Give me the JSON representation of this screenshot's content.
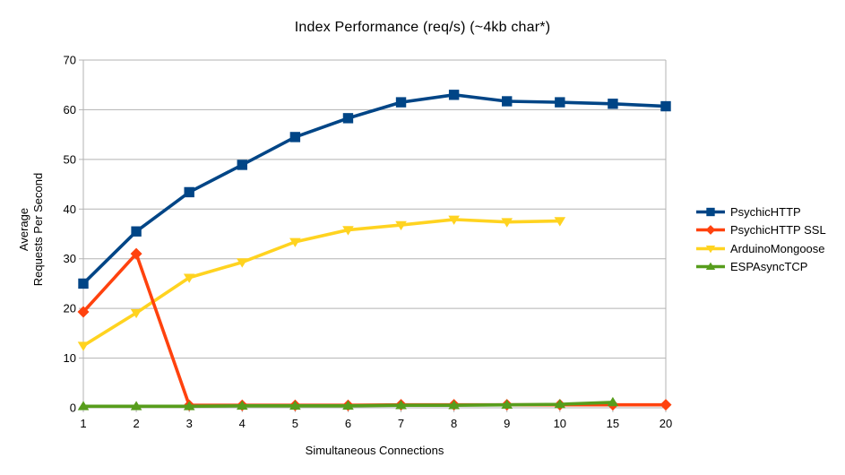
{
  "chart_data": {
    "type": "line",
    "title": "Index Performance (req/s) (~4kb char*)",
    "xlabel": "Simultaneous Connections",
    "ylabel_lines": [
      "Average",
      "Requests Per Second"
    ],
    "categories": [
      "1",
      "2",
      "3",
      "4",
      "5",
      "6",
      "7",
      "8",
      "9",
      "10",
      "15",
      "20"
    ],
    "ylim": [
      0,
      70
    ],
    "yticks": [
      0,
      10,
      20,
      30,
      40,
      50,
      60,
      70
    ],
    "grid": "horizontal",
    "legend_position": "right",
    "series": [
      {
        "name": "PsychicHTTP",
        "color": "#004586",
        "marker": "square",
        "values": [
          25.0,
          35.5,
          43.4,
          48.9,
          54.5,
          58.3,
          61.5,
          63.0,
          61.7,
          61.5,
          61.2,
          60.7
        ]
      },
      {
        "name": "PsychicHTTP SSL",
        "color": "#FF420E",
        "marker": "diamond",
        "values": [
          19.3,
          31.0,
          0.5,
          0.5,
          0.5,
          0.5,
          0.6,
          0.6,
          0.6,
          0.6,
          0.6,
          0.6
        ]
      },
      {
        "name": "ArduinoMongoose",
        "color": "#FFD320",
        "marker": "triangle-down",
        "values": [
          12.5,
          19.1,
          26.2,
          29.3,
          33.4,
          35.8,
          36.8,
          37.9,
          37.4,
          37.6,
          null,
          null
        ]
      },
      {
        "name": "ESPAsyncTCP",
        "color": "#579D1C",
        "marker": "triangle-up",
        "values": [
          0.3,
          0.3,
          0.3,
          0.4,
          0.4,
          0.4,
          0.5,
          0.5,
          0.6,
          0.7,
          1.1,
          null
        ]
      }
    ]
  },
  "colors": {
    "grid": "#B3B3B3",
    "text": "#000000",
    "background": "#FFFFFF"
  }
}
